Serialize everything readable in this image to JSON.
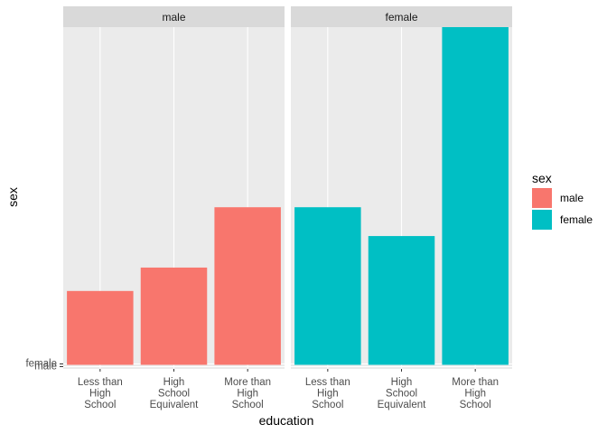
{
  "chart_data": {
    "type": "bar",
    "facet_by": "sex",
    "facets": [
      {
        "label": "male",
        "series": "male",
        "categories": [
          "Less than High School",
          "High School Equivalent",
          "More than High School"
        ],
        "values": [
          82,
          108,
          175
        ]
      },
      {
        "label": "female",
        "series": "female",
        "categories": [
          "Less than High School",
          "High School Equivalent",
          "More than High School"
        ],
        "values": [
          175,
          143,
          375
        ]
      }
    ],
    "category_tick_lines": [
      [
        "Less than",
        "High",
        "School"
      ],
      [
        "High",
        "School",
        "Equivalent"
      ],
      [
        "More than",
        "High",
        "School"
      ]
    ],
    "y_tick_labels": [
      "female",
      "male"
    ],
    "xlabel": "education",
    "ylabel": "sex",
    "ylim": [
      0,
      375
    ],
    "legend": {
      "title": "sex",
      "position": "right",
      "entries": [
        {
          "label": "male",
          "color": "#F8766D"
        },
        {
          "label": "female",
          "color": "#00BFC4"
        }
      ]
    },
    "grid": true,
    "colors": {
      "male": "#F8766D",
      "female": "#00BFC4",
      "panel_bg": "#EBEBEB",
      "strip_bg": "#D9D9D9"
    }
  }
}
